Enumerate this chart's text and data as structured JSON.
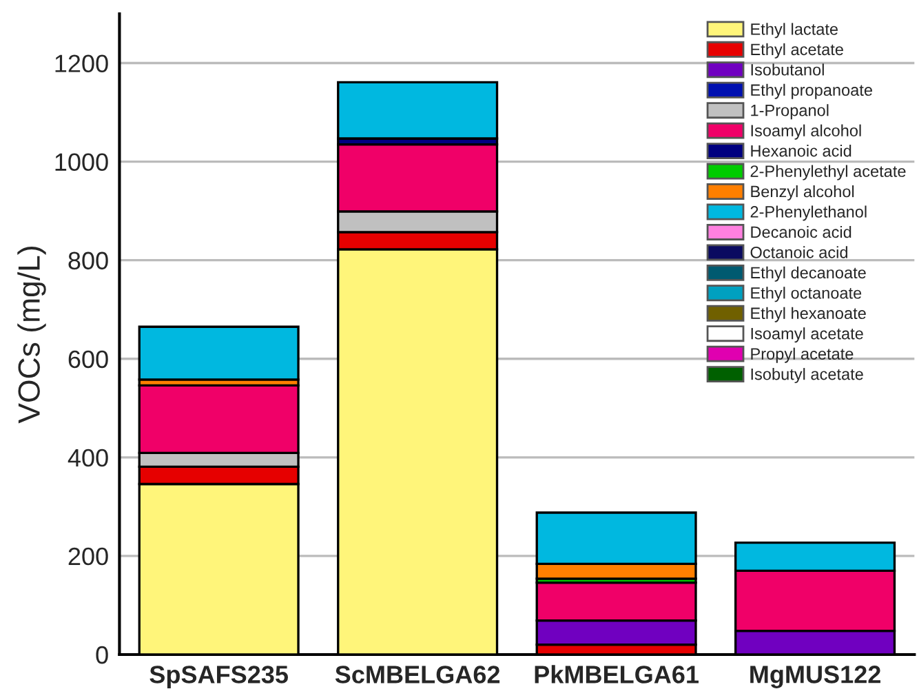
{
  "chart_data": {
    "type": "bar",
    "stacked": true,
    "ylabel": "VOCs (mg/L)",
    "categories": [
      "SpSAFS235",
      "ScMBELGA62",
      "PkMBELGA61",
      "MgMUS122"
    ],
    "ylim": [
      0,
      1300
    ],
    "yticks": [
      0,
      200,
      400,
      600,
      800,
      1000,
      1200
    ],
    "grid": "y",
    "legend": "top right",
    "series": [
      {
        "name": "Ethyl lactate",
        "color": "#fff57a",
        "values": [
          346,
          822,
          0,
          0
        ]
      },
      {
        "name": "Ethyl acetate",
        "color": "#e60000",
        "values": [
          35,
          35,
          20,
          0
        ]
      },
      {
        "name": "Isobutanol",
        "color": "#7000c0",
        "values": [
          0,
          0,
          49,
          48
        ]
      },
      {
        "name": "Ethyl propanoate",
        "color": "#0010b0",
        "values": [
          null,
          0,
          0,
          0
        ]
      },
      {
        "name": "1-Propanol",
        "color": "#c0c0c0",
        "values": [
          28,
          42,
          0,
          0
        ]
      },
      {
        "name": "Isoamyl alcohol",
        "color": "#f00068",
        "values": [
          137,
          136,
          77,
          122
        ]
      },
      {
        "name": "Hexanoic acid",
        "color": "#000080",
        "values": [
          0,
          12,
          0,
          0
        ]
      },
      {
        "name": "2-Phenylethyl acetate",
        "color": "#00cc00",
        "values": [
          0,
          0,
          8,
          0
        ]
      },
      {
        "name": "Benzyl alcohol",
        "color": "#ff7f00",
        "values": [
          12,
          0,
          30,
          0
        ]
      },
      {
        "name": "2-Phenylethanol",
        "color": "#00b8e0",
        "values": [
          107,
          114,
          104,
          57
        ]
      },
      {
        "name": "Decanoic acid",
        "color": "#ff80e0",
        "values": [
          0,
          0,
          0,
          0
        ]
      },
      {
        "name": "Octanoic acid",
        "color": "#0a0a60",
        "values": [
          0,
          0,
          0,
          0
        ]
      },
      {
        "name": "Ethyl decanoate",
        "color": "#005a70",
        "values": [
          0,
          0,
          0,
          0
        ]
      },
      {
        "name": "Ethyl octanoate",
        "color": "#00a0c0",
        "values": [
          0,
          0,
          0,
          0
        ]
      },
      {
        "name": "Ethyl hexanoate",
        "color": "#706000",
        "values": [
          0,
          0,
          0,
          0
        ]
      },
      {
        "name": "Isoamyl acetate",
        "color": "#ffffff",
        "values": [
          0,
          0,
          0,
          0
        ]
      },
      {
        "name": "Propyl acetate",
        "color": "#e000b0",
        "values": [
          0,
          0,
          0,
          0
        ]
      },
      {
        "name": "Isobutyl acetate",
        "color": "#006000",
        "values": [
          0,
          0,
          0,
          0
        ]
      }
    ]
  }
}
